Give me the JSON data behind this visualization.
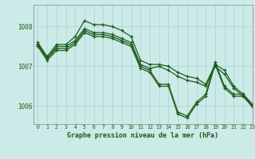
{
  "title": "Graphe pression niveau de la mer (hPa)",
  "background_color": "#cceae7",
  "plot_bg_color": "#cceae7",
  "grid_color": "#aad4d0",
  "line_color": "#1a5c1a",
  "marker": "+",
  "xlim": [
    -0.5,
    23
  ],
  "ylim": [
    1005.55,
    1008.55
  ],
  "yticks": [
    1006,
    1007,
    1008
  ],
  "xticks": [
    0,
    1,
    2,
    3,
    4,
    5,
    6,
    7,
    8,
    9,
    10,
    11,
    12,
    13,
    14,
    15,
    16,
    17,
    18,
    19,
    20,
    21,
    22,
    23
  ],
  "series": [
    [
      1007.6,
      1007.25,
      1007.55,
      1007.55,
      1007.75,
      1008.15,
      1008.05,
      1008.05,
      1008.0,
      1007.9,
      1007.75,
      1007.15,
      1007.05,
      1007.05,
      1007.0,
      1006.85,
      1006.75,
      1006.7,
      1006.55,
      1007.05,
      1006.9,
      1006.5,
      1006.3,
      1006.05
    ],
    [
      1007.55,
      1007.2,
      1007.5,
      1007.5,
      1007.65,
      1007.95,
      1007.85,
      1007.85,
      1007.8,
      1007.7,
      1007.6,
      1007.05,
      1006.95,
      1007.0,
      1006.9,
      1006.75,
      1006.65,
      1006.6,
      1006.5,
      1007.0,
      1006.8,
      1006.45,
      1006.25,
      1006.0
    ],
    [
      1007.55,
      1007.2,
      1007.45,
      1007.45,
      1007.6,
      1007.9,
      1007.8,
      1007.8,
      1007.75,
      1007.65,
      1007.55,
      1007.0,
      1006.9,
      1006.55,
      1006.55,
      1005.85,
      1005.75,
      1006.1,
      1006.3,
      1007.1,
      1006.5,
      1006.3,
      1006.3,
      1006.0
    ],
    [
      1007.5,
      1007.15,
      1007.4,
      1007.4,
      1007.55,
      1007.85,
      1007.75,
      1007.75,
      1007.7,
      1007.6,
      1007.5,
      1006.95,
      1006.85,
      1006.5,
      1006.5,
      1005.8,
      1005.7,
      1006.05,
      1006.25,
      1007.05,
      1006.45,
      1006.25,
      1006.25,
      1005.98
    ]
  ]
}
